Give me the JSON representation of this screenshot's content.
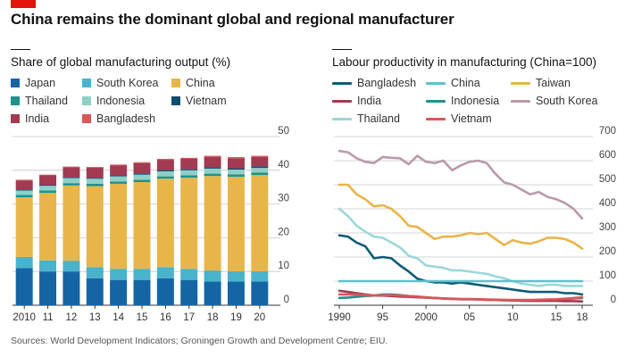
{
  "title": "China remains the dominant global and regional manufacturer",
  "source": "Sources: World Development Indicators; Groningen Growth and Development Centre; EIU.",
  "colors": {
    "Japan": "#1565a5",
    "South Korea": "#49b3cc",
    "China": "#e8b54a",
    "Thailand": "#1f9289",
    "Indonesia": "#8fcfc6",
    "Vietnam": "#0f4d6e",
    "India": "#a23a52",
    "Bangladesh": "#d9575a",
    "line_Bangladesh": "#0f5a73",
    "line_China": "#5fc0cc",
    "line_Taiwan": "#e8b54a",
    "line_India": "#a23a52",
    "line_Indonesia": "#1f9289",
    "line_South Korea": "#b89aaa",
    "line_Thailand": "#9cd6d8",
    "line_Vietnam": "#d9575a",
    "grid": "#c8c8c8",
    "axis": "#555555"
  },
  "chart_data": [
    {
      "type": "bar",
      "stacked": true,
      "title": "Share of global manufacturing output (%)",
      "categories": [
        "2010",
        "11",
        "12",
        "13",
        "14",
        "15",
        "16",
        "17",
        "18",
        "19",
        "20"
      ],
      "legend": [
        "Japan",
        "South Korea",
        "China",
        "Thailand",
        "Indonesia",
        "Vietnam",
        "India",
        "Bangladesh"
      ],
      "series": [
        {
          "name": "Japan",
          "values": [
            11,
            10,
            10,
            8,
            7.5,
            7.5,
            8,
            7.5,
            7,
            7,
            7
          ]
        },
        {
          "name": "South Korea",
          "values": [
            3.3,
            3.3,
            3.2,
            3.3,
            3.3,
            3.3,
            3.3,
            3.3,
            3.3,
            3.1,
            3.1
          ]
        },
        {
          "name": "China",
          "values": [
            17.7,
            20,
            22.3,
            24,
            25.2,
            25.7,
            26.2,
            27,
            28,
            28,
            28.5
          ]
        },
        {
          "name": "Thailand",
          "values": [
            0.7,
            0.7,
            0.7,
            0.7,
            0.7,
            0.7,
            0.7,
            0.7,
            0.7,
            0.7,
            0.7
          ]
        },
        {
          "name": "Indonesia",
          "values": [
            1.3,
            1.4,
            1.5,
            1.5,
            1.5,
            1.5,
            1.5,
            1.5,
            1.5,
            1.4,
            1.4
          ]
        },
        {
          "name": "Vietnam",
          "values": [
            0.3,
            0.3,
            0.3,
            0.3,
            0.3,
            0.4,
            0.4,
            0.4,
            0.4,
            0.4,
            0.5
          ]
        },
        {
          "name": "India",
          "values": [
            2.7,
            2.8,
            2.9,
            3,
            3,
            3,
            3,
            3,
            3.1,
            3,
            2.8
          ]
        },
        {
          "name": "Bangladesh",
          "values": [
            0.2,
            0.2,
            0.2,
            0.2,
            0.2,
            0.3,
            0.3,
            0.3,
            0.3,
            0.3,
            0.3
          ]
        }
      ],
      "ylim": [
        0,
        50
      ],
      "yticks": [
        0,
        10,
        20,
        30,
        40,
        50
      ],
      "xlabel": "",
      "ylabel": ""
    },
    {
      "type": "line",
      "title": "Labour productivity in manufacturing (China=100)",
      "legend": [
        "Bangladesh",
        "China",
        "Taiwan",
        "India",
        "Indonesia",
        "South Korea",
        "Thailand",
        "Vietnam"
      ],
      "xlim": [
        1990,
        2018
      ],
      "ylim": [
        0,
        700
      ],
      "yticks": [
        0,
        100,
        200,
        300,
        400,
        500,
        600,
        700
      ],
      "xticks": [
        1990,
        1995,
        2000,
        2005,
        2010,
        2015,
        2018
      ],
      "xtick_labels": [
        "1990",
        "95",
        "2000",
        "05",
        "10",
        "15",
        "18"
      ],
      "series": [
        {
          "name": "South Korea",
          "x": [
            1990,
            1991,
            1992,
            1993,
            1994,
            1995,
            1996,
            1997,
            1998,
            1999,
            2000,
            2001,
            2002,
            2003,
            2004,
            2005,
            2006,
            2007,
            2008,
            2009,
            2010,
            2011,
            2012,
            2013,
            2014,
            2015,
            2016,
            2017,
            2018
          ],
          "y": [
            640,
            635,
            610,
            595,
            590,
            615,
            612,
            610,
            585,
            620,
            595,
            590,
            600,
            560,
            580,
            595,
            600,
            590,
            545,
            510,
            500,
            480,
            460,
            470,
            450,
            440,
            425,
            400,
            360
          ]
        },
        {
          "name": "Taiwan",
          "x": [
            1990,
            1991,
            1992,
            1993,
            1994,
            1995,
            1996,
            1997,
            1998,
            1999,
            2000,
            2001,
            2002,
            2003,
            2004,
            2005,
            2006,
            2007,
            2008,
            2009,
            2010,
            2011,
            2012,
            2013,
            2014,
            2015,
            2016,
            2017,
            2018
          ],
          "y": [
            500,
            500,
            460,
            440,
            410,
            415,
            400,
            370,
            330,
            325,
            300,
            275,
            285,
            285,
            290,
            300,
            295,
            300,
            275,
            250,
            270,
            260,
            255,
            265,
            280,
            280,
            275,
            260,
            235
          ]
        },
        {
          "name": "Thailand",
          "x": [
            1990,
            1991,
            1992,
            1993,
            1994,
            1995,
            1996,
            1997,
            1998,
            1999,
            2000,
            2001,
            2002,
            2003,
            2004,
            2005,
            2006,
            2007,
            2008,
            2009,
            2010,
            2011,
            2012,
            2013,
            2014,
            2015,
            2016,
            2017,
            2018
          ],
          "y": [
            400,
            370,
            330,
            305,
            285,
            280,
            260,
            240,
            205,
            195,
            165,
            160,
            155,
            145,
            145,
            140,
            135,
            130,
            120,
            112,
            100,
            90,
            85,
            80,
            85,
            85,
            80,
            80,
            80
          ]
        },
        {
          "name": "Bangladesh",
          "x": [
            1990,
            1991,
            1992,
            1993,
            1994,
            1995,
            1996,
            1997,
            1998,
            1999,
            2000,
            2001,
            2002,
            2003,
            2004,
            2005,
            2006,
            2007,
            2008,
            2009,
            2010,
            2011,
            2012,
            2013,
            2014,
            2015,
            2016,
            2017,
            2018
          ],
          "y": [
            290,
            285,
            260,
            245,
            195,
            200,
            195,
            165,
            140,
            110,
            100,
            95,
            95,
            90,
            95,
            90,
            85,
            80,
            75,
            70,
            65,
            60,
            55,
            55,
            55,
            55,
            50,
            50,
            45
          ]
        },
        {
          "name": "China",
          "x": [
            1990,
            2018
          ],
          "y": [
            100,
            100
          ]
        },
        {
          "name": "Indonesia",
          "x": [
            1990,
            1991,
            1992,
            1993,
            1994,
            1995,
            1996,
            1997,
            1998,
            1999,
            2000,
            2001,
            2002,
            2003,
            2004,
            2005,
            2006,
            2007,
            2008,
            2009,
            2010,
            2011,
            2012,
            2013,
            2014,
            2015,
            2016,
            2017,
            2018
          ],
          "y": [
            30,
            32,
            35,
            38,
            40,
            45,
            45,
            42,
            38,
            36,
            32,
            30,
            28,
            26,
            25,
            25,
            24,
            22,
            22,
            20,
            20,
            18,
            18,
            18,
            20,
            22,
            25,
            28,
            30
          ]
        },
        {
          "name": "India",
          "x": [
            1990,
            1991,
            1992,
            1993,
            1994,
            1995,
            1996,
            1997,
            1998,
            1999,
            2000,
            2001,
            2002,
            2003,
            2004,
            2005,
            2006,
            2007,
            2008,
            2009,
            2010,
            2011,
            2012,
            2013,
            2014,
            2015,
            2016,
            2017,
            2018
          ],
          "y": [
            60,
            55,
            50,
            45,
            40,
            40,
            38,
            36,
            35,
            33,
            32,
            30,
            28,
            27,
            26,
            26,
            25,
            24,
            23,
            22,
            20,
            20,
            19,
            18,
            18,
            18,
            17,
            17,
            16
          ]
        },
        {
          "name": "Vietnam",
          "x": [
            1990,
            1991,
            1992,
            1993,
            1994,
            1995,
            1996,
            1997,
            1998,
            1999,
            2000,
            2001,
            2002,
            2003,
            2004,
            2005,
            2006,
            2007,
            2008,
            2009,
            2010,
            2011,
            2012,
            2013,
            2014,
            2015,
            2016,
            2017,
            2018
          ],
          "y": [
            45,
            45,
            44,
            42,
            40,
            42,
            42,
            40,
            38,
            36,
            33,
            30,
            28,
            26,
            25,
            25,
            24,
            23,
            22,
            22,
            22,
            22,
            22,
            23,
            24,
            25,
            27,
            30,
            33
          ]
        }
      ]
    }
  ]
}
